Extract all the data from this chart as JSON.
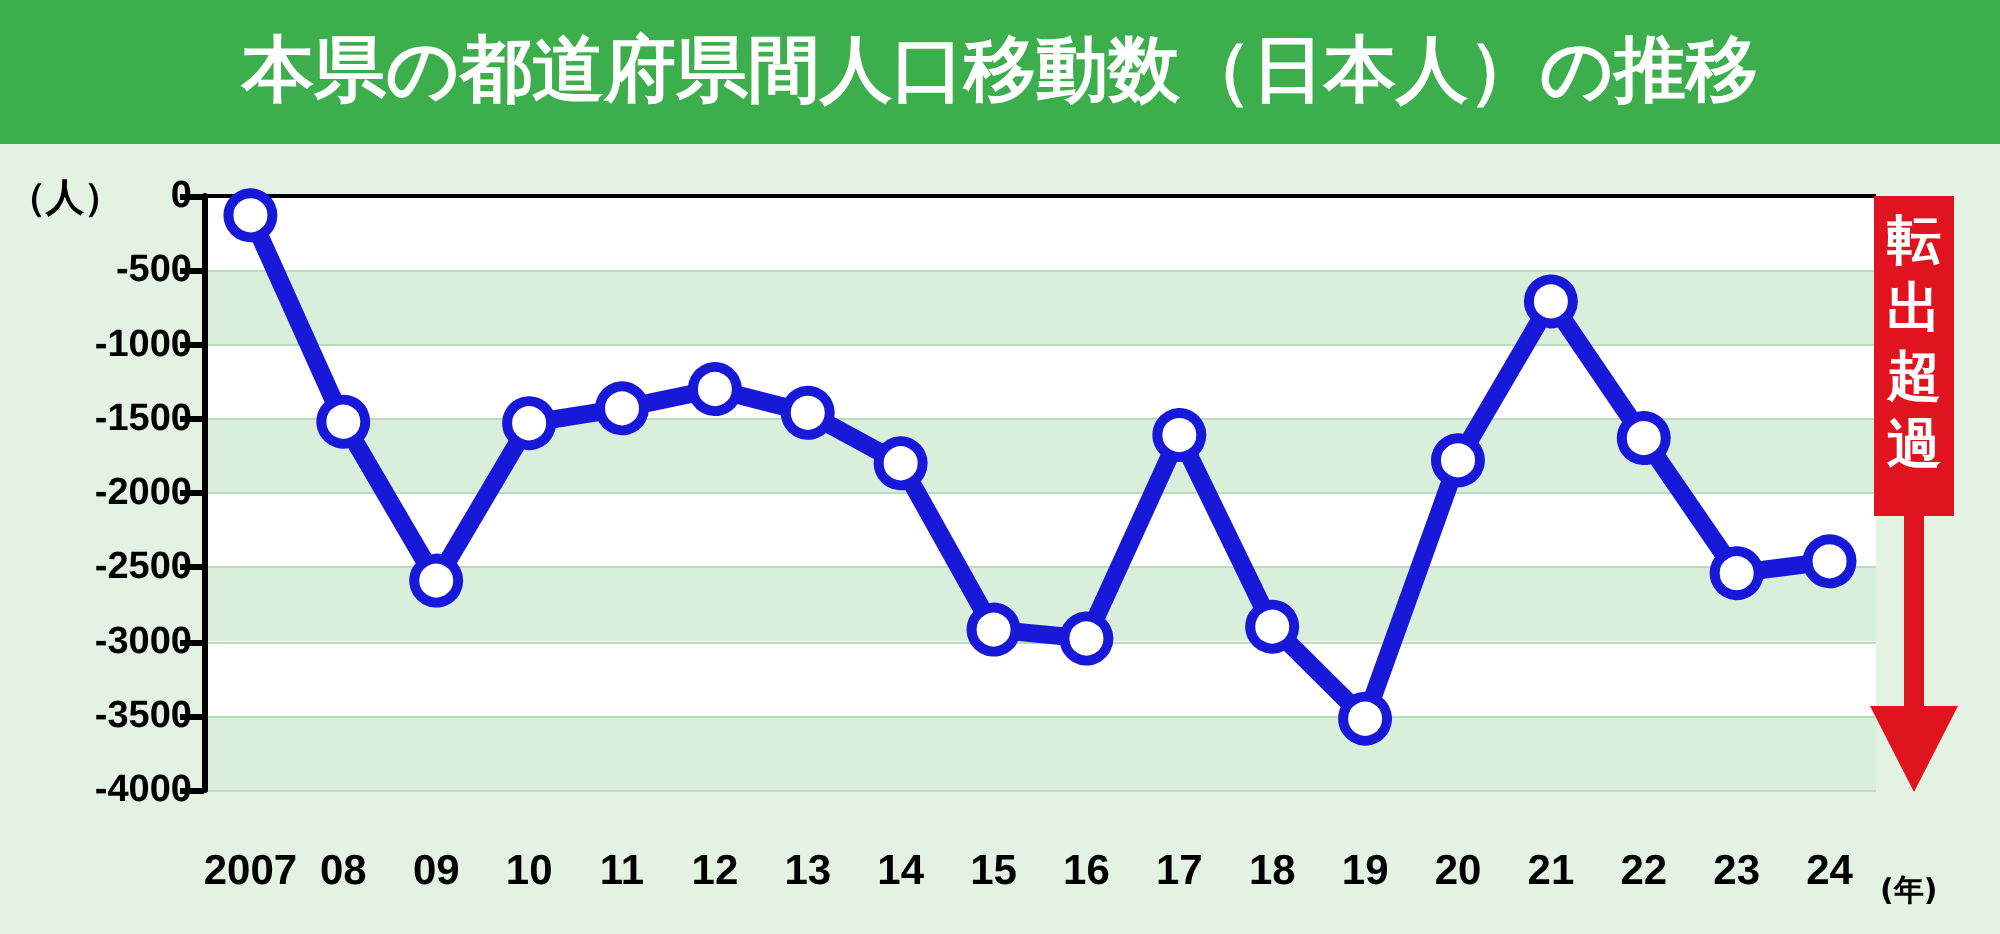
{
  "chart_data": {
    "type": "line",
    "title": "本県の都道府県間人口移動数（日本人）の推移",
    "ylabel": "（人）",
    "xlabel": "(年)",
    "categories": [
      "2007",
      "08",
      "09",
      "10",
      "11",
      "12",
      "13",
      "14",
      "15",
      "16",
      "17",
      "18",
      "19",
      "20",
      "21",
      "22",
      "23",
      "24"
    ],
    "series": [
      {
        "color": "#1818d8",
        "values": [
          -130,
          -1520,
          -2590,
          -1530,
          -1430,
          -1300,
          -1460,
          -1800,
          -2920,
          -2980,
          -1610,
          -2900,
          -3520,
          -1780,
          -710,
          -1630,
          -2540,
          -2460
        ]
      }
    ],
    "ylim": [
      -4000,
      0
    ],
    "yticks": [
      0,
      -500,
      -1000,
      -1500,
      -2000,
      -2500,
      -3000,
      -3500,
      -4000
    ],
    "grid": "y",
    "marker": "circle",
    "line_style": "solid",
    "ref_lines": [
      {
        "axis": "y",
        "value": 0,
        "color": "#000000"
      }
    ],
    "annotations": [
      "転出超過"
    ]
  }
}
